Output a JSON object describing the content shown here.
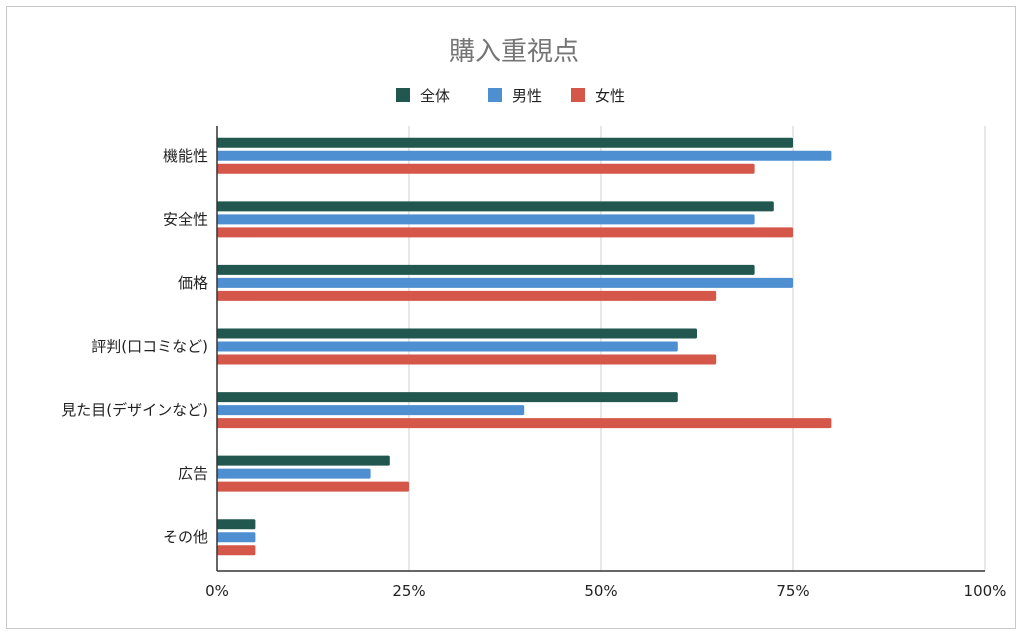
{
  "chart_data": {
    "type": "bar",
    "orientation": "horizontal",
    "title": "購入重視点",
    "categories": [
      "機能性",
      "安全性",
      "価格",
      "評判(口コミなど)",
      "見た目(デザインなど)",
      "広告",
      "その他"
    ],
    "series": [
      {
        "name": "全体",
        "color": "#22574f",
        "values": [
          75,
          72.5,
          70,
          62.5,
          60,
          22.5,
          5
        ]
      },
      {
        "name": "男性",
        "color": "#4d8fd1",
        "values": [
          80,
          70,
          75,
          60,
          40,
          20,
          5
        ]
      },
      {
        "name": "女性",
        "color": "#d4574a",
        "values": [
          70,
          75,
          65,
          65,
          80,
          25,
          5
        ]
      }
    ],
    "xlim": [
      0,
      100
    ],
    "x_ticks": [
      0,
      25,
      50,
      75,
      100
    ],
    "x_tick_labels": [
      "0%",
      "25%",
      "50%",
      "75%",
      "100%"
    ],
    "grid": true,
    "legend_position": "top"
  }
}
